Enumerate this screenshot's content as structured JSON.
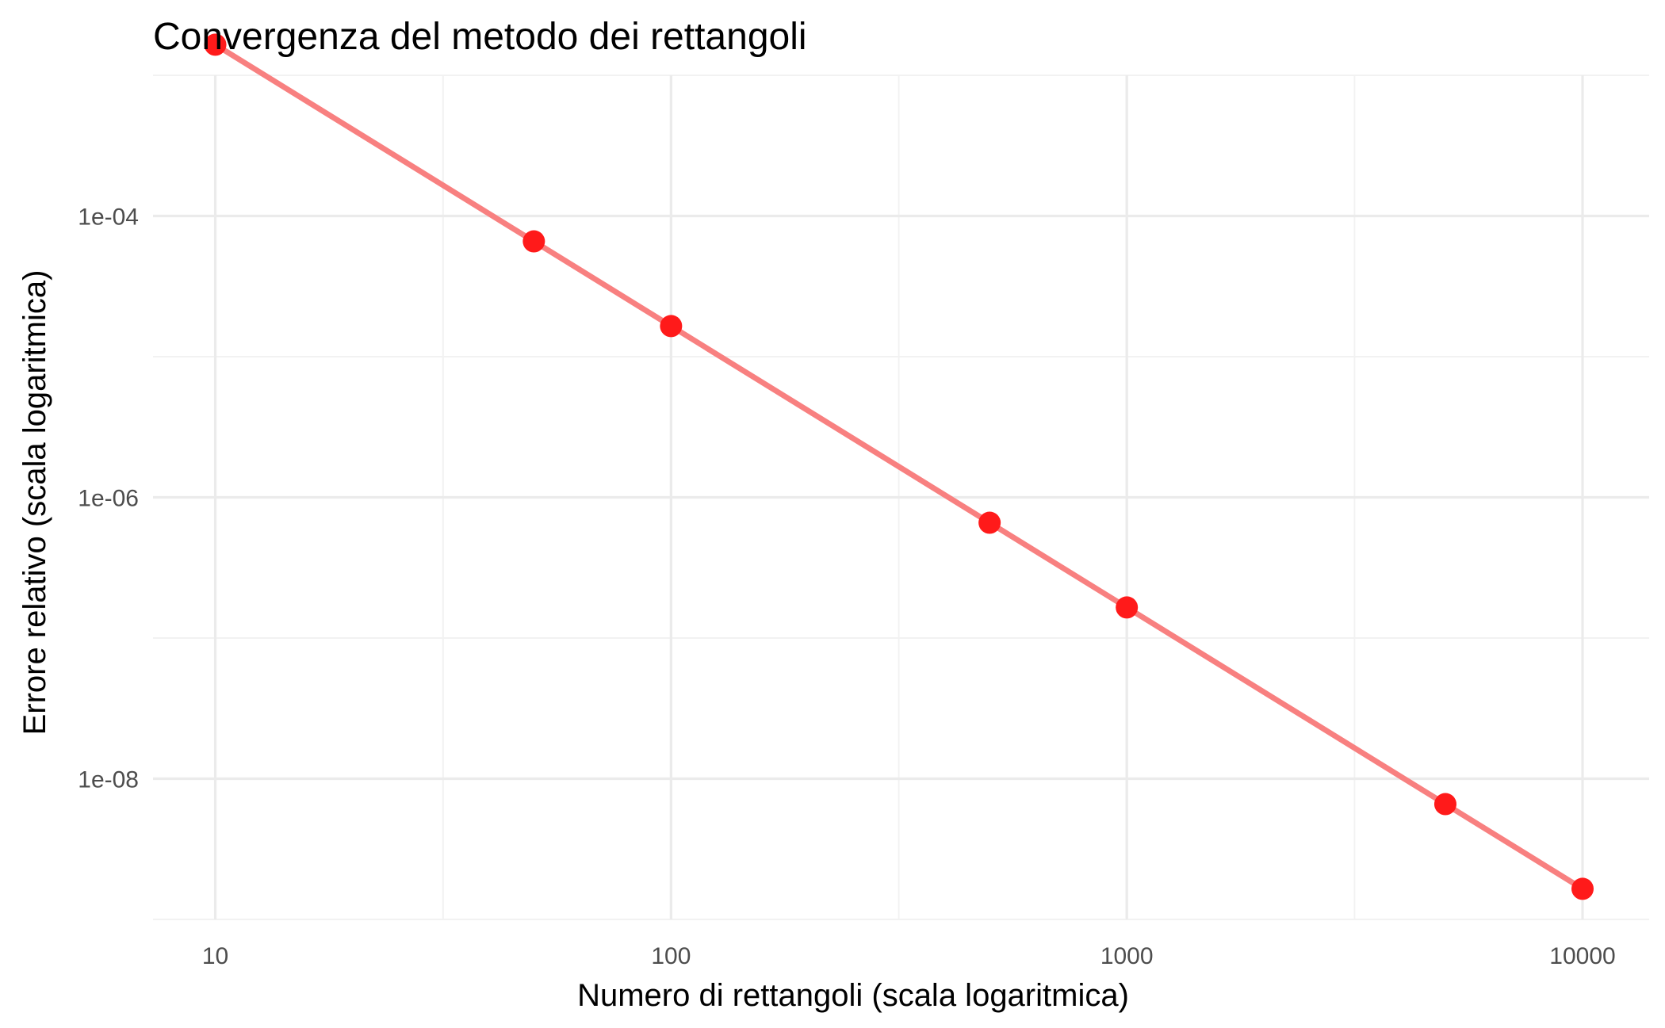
{
  "chart_data": {
    "type": "line",
    "title": "Convergenza del metodo dei rettangoli",
    "xlabel": "Numero di rettangoli (scala logaritmica)",
    "ylabel": "Errore relativo (scala logaritmica)",
    "x_scale": "log10",
    "y_scale": "log10",
    "xlim": [
      7.3,
      14000
    ],
    "ylim": [
      1e-09,
      0.001
    ],
    "x_ticks": [
      {
        "value": 10,
        "label": "10"
      },
      {
        "value": 100,
        "label": "100"
      },
      {
        "value": 1000,
        "label": "1000"
      },
      {
        "value": 10000,
        "label": "10000"
      }
    ],
    "x_minor_ticks": [
      31.6,
      316,
      3160
    ],
    "y_ticks": [
      {
        "value": 0.0001,
        "label": "1e-04"
      },
      {
        "value": 1e-06,
        "label": "1e-06"
      },
      {
        "value": 1e-08,
        "label": "1e-08"
      }
    ],
    "y_minor_ticks": [
      0.001,
      1e-05,
      1e-07,
      1e-09
    ],
    "grid": true,
    "legend": "none",
    "colors": {
      "line": "#f88080",
      "points": "#ff1a1a"
    },
    "series": [
      {
        "x": [
          10,
          50,
          100,
          500,
          1000,
          5000,
          10000
        ],
        "y": [
          0.00165,
          6.6e-05,
          1.65e-05,
          6.6e-07,
          1.65e-07,
          6.6e-09,
          1.65e-09
        ]
      }
    ]
  }
}
